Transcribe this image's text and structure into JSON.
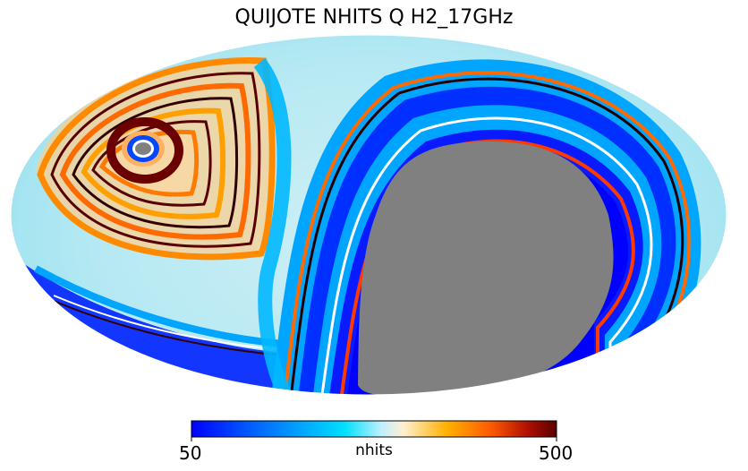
{
  "title": "QUIJOTE NHITS Q H2_17GHz",
  "projection": "mollweide",
  "masked_color": "#808080",
  "colorbar": {
    "label": "nhits",
    "min_label": "50",
    "max_label": "500",
    "min": 50,
    "max": 500,
    "colormap": [
      "#0000ff",
      "#0057ff",
      "#00a5ff",
      "#00e0ff",
      "#bfefff",
      "#fff0d0",
      "#ffb000",
      "#ff5a00",
      "#b01000",
      "#5a0000"
    ]
  }
}
